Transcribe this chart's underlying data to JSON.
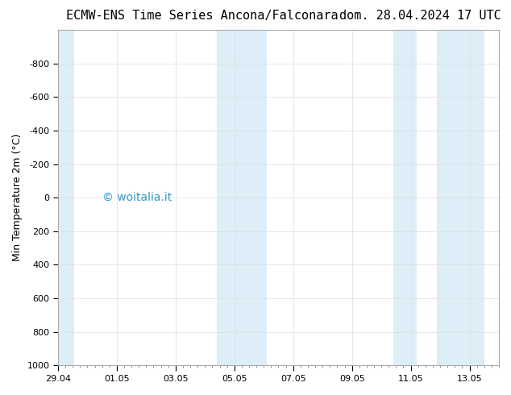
{
  "title_left": "ECMW-ENS Time Series Ancona/Falconara",
  "title_right": "dom. 28.04.2024 17 UTC",
  "ylabel": "Min Temperature 2m (°C)",
  "ylim_top": -1000,
  "ylim_bottom": 1000,
  "y_ticks": [
    -800,
    -600,
    -400,
    -200,
    0,
    200,
    400,
    600,
    800,
    1000
  ],
  "x_tick_labels": [
    "29.04",
    "01.05",
    "03.05",
    "05.05",
    "07.05",
    "09.05",
    "11.05",
    "13.05"
  ],
  "x_tick_positions": [
    0,
    2,
    4,
    6,
    8,
    10,
    12,
    14
  ],
  "x_lim": [
    0,
    15
  ],
  "background_color": "#ffffff",
  "band_color": "#ddeef8",
  "shaded_regions": [
    [
      0.0,
      0.55
    ],
    [
      5.4,
      7.1
    ],
    [
      11.4,
      12.2
    ],
    [
      12.9,
      14.5
    ]
  ],
  "watermark": "© woitalia.it",
  "watermark_color": "#3399cc",
  "title_fontsize": 11,
  "axis_label_fontsize": 9,
  "tick_fontsize": 8
}
